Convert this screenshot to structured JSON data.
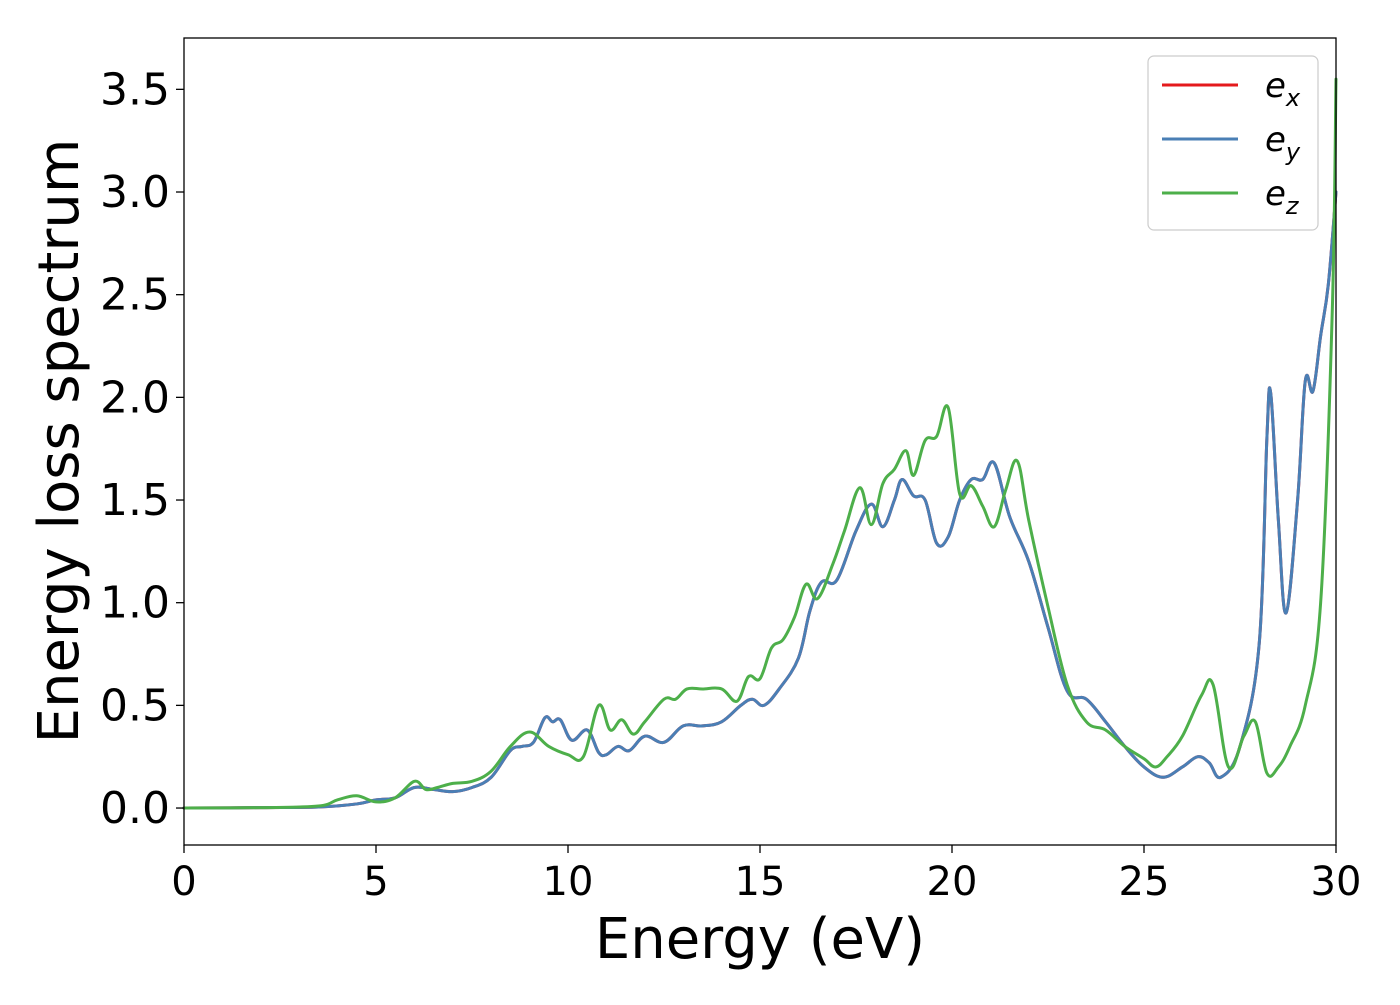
{
  "chart_data": {
    "type": "line",
    "xlabel": "Energy (eV)",
    "ylabel": "Energy loss spectrum",
    "xlim": [
      0,
      30
    ],
    "ylim": [
      -0.18,
      3.75
    ],
    "x_ticks": [
      0,
      5,
      10,
      15,
      20,
      25,
      30
    ],
    "x_tick_labels": [
      "0",
      "5",
      "10",
      "15",
      "20",
      "25",
      "30"
    ],
    "y_ticks": [
      0.0,
      0.5,
      1.0,
      1.5,
      2.0,
      2.5,
      3.0,
      3.5
    ],
    "y_tick_labels": [
      "0.0",
      "0.5",
      "1.0",
      "1.5",
      "2.0",
      "2.5",
      "3.0",
      "3.5"
    ],
    "grid": false,
    "legend_position": "top-right",
    "series": [
      {
        "name": "e_x",
        "label_base": "e",
        "label_sub": "x",
        "color": "#e41a1c",
        "x": [
          0,
          2,
          3.5,
          4.5,
          5.0,
          5.5,
          6.0,
          6.5,
          7.0,
          7.5,
          8.0,
          8.5,
          8.8,
          9.1,
          9.4,
          9.6,
          9.8,
          10.1,
          10.5,
          10.8,
          11.0,
          11.3,
          11.6,
          12.0,
          12.5,
          13.0,
          13.5,
          14.0,
          14.5,
          14.8,
          15.1,
          15.5,
          16.0,
          16.3,
          16.6,
          17.0,
          17.5,
          17.9,
          18.2,
          18.5,
          18.7,
          19.0,
          19.3,
          19.6,
          19.9,
          20.2,
          20.5,
          20.8,
          21.1,
          21.5,
          22.0,
          22.5,
          23.0,
          23.5,
          24.0,
          24.5,
          25.0,
          25.5,
          26.0,
          26.4,
          26.7,
          27.0,
          27.5,
          28.0,
          28.2,
          28.3,
          28.5,
          28.7,
          29.0,
          29.2,
          29.4,
          29.6,
          29.8,
          30.0
        ],
        "y": [
          0.0,
          0.002,
          0.005,
          0.02,
          0.04,
          0.05,
          0.1,
          0.09,
          0.08,
          0.1,
          0.15,
          0.28,
          0.3,
          0.32,
          0.44,
          0.42,
          0.43,
          0.33,
          0.38,
          0.27,
          0.26,
          0.3,
          0.28,
          0.35,
          0.32,
          0.4,
          0.4,
          0.42,
          0.5,
          0.53,
          0.5,
          0.58,
          0.73,
          0.96,
          1.1,
          1.11,
          1.35,
          1.48,
          1.37,
          1.5,
          1.6,
          1.52,
          1.5,
          1.29,
          1.32,
          1.5,
          1.6,
          1.6,
          1.68,
          1.42,
          1.2,
          0.88,
          0.57,
          0.53,
          0.42,
          0.3,
          0.2,
          0.15,
          0.2,
          0.25,
          0.22,
          0.15,
          0.3,
          0.8,
          1.8,
          2.02,
          1.4,
          0.95,
          1.5,
          2.08,
          2.03,
          2.3,
          2.55,
          3.0
        ]
      },
      {
        "name": "e_y",
        "label_base": "e",
        "label_sub": "y",
        "color": "#4a7fb5",
        "x": [
          0,
          2,
          3.5,
          4.5,
          5.0,
          5.5,
          6.0,
          6.5,
          7.0,
          7.5,
          8.0,
          8.5,
          8.8,
          9.1,
          9.4,
          9.6,
          9.8,
          10.1,
          10.5,
          10.8,
          11.0,
          11.3,
          11.6,
          12.0,
          12.5,
          13.0,
          13.5,
          14.0,
          14.5,
          14.8,
          15.1,
          15.5,
          16.0,
          16.3,
          16.6,
          17.0,
          17.5,
          17.9,
          18.2,
          18.5,
          18.7,
          19.0,
          19.3,
          19.6,
          19.9,
          20.2,
          20.5,
          20.8,
          21.1,
          21.5,
          22.0,
          22.5,
          23.0,
          23.5,
          24.0,
          24.5,
          25.0,
          25.5,
          26.0,
          26.4,
          26.7,
          27.0,
          27.5,
          28.0,
          28.2,
          28.3,
          28.5,
          28.7,
          29.0,
          29.2,
          29.4,
          29.6,
          29.8,
          30.0
        ],
        "y": [
          0.0,
          0.002,
          0.005,
          0.02,
          0.04,
          0.05,
          0.1,
          0.09,
          0.08,
          0.1,
          0.15,
          0.28,
          0.3,
          0.32,
          0.44,
          0.42,
          0.43,
          0.33,
          0.38,
          0.27,
          0.26,
          0.3,
          0.28,
          0.35,
          0.32,
          0.4,
          0.4,
          0.42,
          0.5,
          0.53,
          0.5,
          0.58,
          0.73,
          0.96,
          1.1,
          1.11,
          1.35,
          1.48,
          1.37,
          1.5,
          1.6,
          1.52,
          1.5,
          1.29,
          1.32,
          1.5,
          1.6,
          1.6,
          1.68,
          1.42,
          1.2,
          0.88,
          0.57,
          0.53,
          0.42,
          0.3,
          0.2,
          0.15,
          0.2,
          0.25,
          0.22,
          0.15,
          0.3,
          0.8,
          1.8,
          2.02,
          1.4,
          0.95,
          1.5,
          2.08,
          2.03,
          2.3,
          2.55,
          3.0
        ]
      },
      {
        "name": "e_z",
        "label_base": "e",
        "label_sub": "z",
        "color": "#4daf4a",
        "x": [
          0,
          2,
          3.5,
          4.0,
          4.5,
          5.0,
          5.5,
          6.0,
          6.3,
          6.6,
          7.0,
          7.5,
          8.0,
          8.5,
          9.0,
          9.5,
          10.0,
          10.4,
          10.8,
          11.1,
          11.4,
          11.7,
          12.0,
          12.5,
          12.8,
          13.1,
          13.5,
          14.0,
          14.4,
          14.7,
          15.0,
          15.3,
          15.6,
          15.9,
          16.2,
          16.5,
          16.9,
          17.2,
          17.6,
          17.9,
          18.2,
          18.5,
          18.8,
          19.0,
          19.3,
          19.6,
          19.9,
          20.2,
          20.5,
          20.8,
          21.1,
          21.4,
          21.7,
          22.0,
          22.5,
          23.0,
          23.5,
          24.0,
          24.5,
          25.0,
          25.3,
          25.6,
          26.0,
          26.5,
          26.8,
          27.2,
          27.6,
          27.9,
          28.2,
          28.5,
          28.8,
          29.2,
          29.6,
          29.9,
          30.0
        ],
        "y": [
          0.0,
          0.002,
          0.01,
          0.04,
          0.06,
          0.03,
          0.05,
          0.13,
          0.09,
          0.1,
          0.12,
          0.13,
          0.18,
          0.3,
          0.37,
          0.3,
          0.26,
          0.25,
          0.5,
          0.38,
          0.43,
          0.36,
          0.42,
          0.53,
          0.53,
          0.58,
          0.58,
          0.58,
          0.52,
          0.64,
          0.63,
          0.78,
          0.82,
          0.93,
          1.09,
          1.02,
          1.19,
          1.35,
          1.56,
          1.38,
          1.58,
          1.65,
          1.74,
          1.62,
          1.79,
          1.81,
          1.95,
          1.53,
          1.57,
          1.47,
          1.37,
          1.55,
          1.69,
          1.4,
          0.98,
          0.6,
          0.42,
          0.38,
          0.3,
          0.24,
          0.2,
          0.25,
          0.35,
          0.55,
          0.6,
          0.2,
          0.35,
          0.42,
          0.17,
          0.2,
          0.3,
          0.5,
          1.0,
          2.4,
          3.55
        ]
      }
    ]
  }
}
